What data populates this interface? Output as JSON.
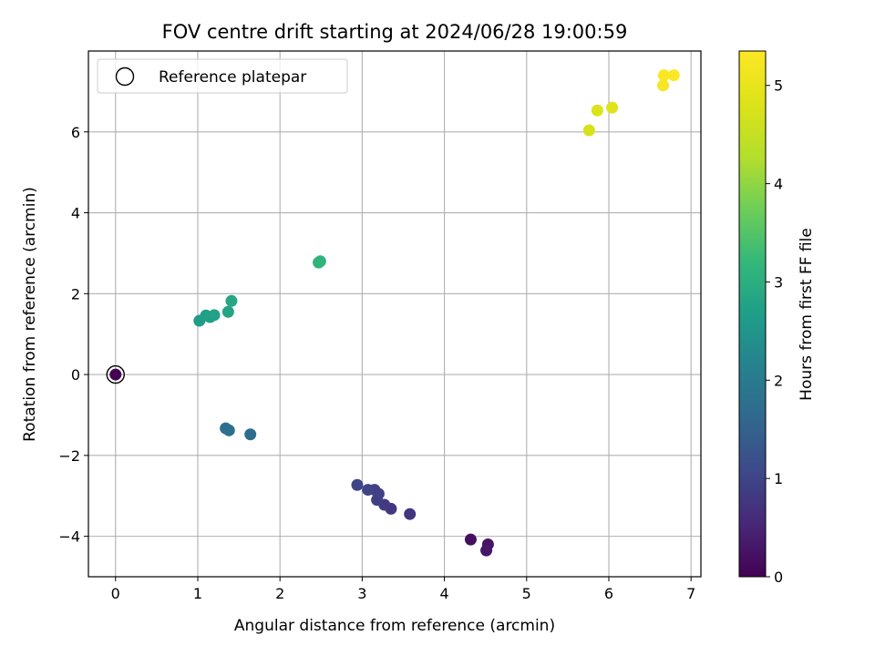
{
  "chart_data": {
    "type": "scatter",
    "title": "FOV centre drift starting at 2024/06/28 19:00:59",
    "xlabel": "Angular distance from reference (arcmin)",
    "ylabel": "Rotation from reference (arcmin)",
    "xlim": [
      -0.33,
      7.12
    ],
    "ylim": [
      -5.0,
      8.0
    ],
    "xticks": [
      0,
      1,
      2,
      3,
      4,
      5,
      6,
      7
    ],
    "yticks": [
      -4,
      -2,
      0,
      2,
      4,
      6
    ],
    "grid": true,
    "legend": {
      "placement": "top-left",
      "entries": [
        "Reference platepar"
      ]
    },
    "colorbar": {
      "label": "Hours from first FF file",
      "colormap": "viridis",
      "range": [
        0,
        5.35
      ],
      "ticks": [
        0,
        1,
        2,
        3,
        4,
        5
      ]
    },
    "reference_point": {
      "x": 0,
      "y": 0,
      "c": 0
    },
    "points": [
      {
        "x": 0.0,
        "y": 0.0,
        "c": 0.0
      },
      {
        "x": 4.32,
        "y": -4.08,
        "c": 0.2
      },
      {
        "x": 4.53,
        "y": -4.2,
        "c": 0.25
      },
      {
        "x": 4.51,
        "y": -4.35,
        "c": 0.3
      },
      {
        "x": 3.58,
        "y": -3.45,
        "c": 0.75
      },
      {
        "x": 3.35,
        "y": -3.32,
        "c": 0.8
      },
      {
        "x": 3.27,
        "y": -3.22,
        "c": 0.85
      },
      {
        "x": 3.18,
        "y": -3.1,
        "c": 0.9
      },
      {
        "x": 3.2,
        "y": -2.95,
        "c": 0.92
      },
      {
        "x": 3.15,
        "y": -2.85,
        "c": 0.95
      },
      {
        "x": 3.07,
        "y": -2.85,
        "c": 0.97
      },
      {
        "x": 2.94,
        "y": -2.73,
        "c": 1.0
      },
      {
        "x": 1.64,
        "y": -1.48,
        "c": 1.7
      },
      {
        "x": 1.38,
        "y": -1.38,
        "c": 1.75
      },
      {
        "x": 1.34,
        "y": -1.33,
        "c": 1.8
      },
      {
        "x": 1.02,
        "y": 1.33,
        "c": 2.65
      },
      {
        "x": 1.1,
        "y": 1.46,
        "c": 2.7
      },
      {
        "x": 1.15,
        "y": 1.42,
        "c": 2.72
      },
      {
        "x": 1.2,
        "y": 1.47,
        "c": 2.75
      },
      {
        "x": 1.37,
        "y": 1.55,
        "c": 2.8
      },
      {
        "x": 1.41,
        "y": 1.82,
        "c": 2.85
      },
      {
        "x": 2.47,
        "y": 2.77,
        "c": 3.1
      },
      {
        "x": 2.49,
        "y": 2.8,
        "c": 3.12
      },
      {
        "x": 5.76,
        "y": 6.04,
        "c": 4.75
      },
      {
        "x": 5.86,
        "y": 6.53,
        "c": 4.8
      },
      {
        "x": 6.04,
        "y": 6.6,
        "c": 4.85
      },
      {
        "x": 6.66,
        "y": 7.15,
        "c": 5.25
      },
      {
        "x": 6.67,
        "y": 7.4,
        "c": 5.3
      },
      {
        "x": 6.79,
        "y": 7.4,
        "c": 5.33
      }
    ]
  }
}
